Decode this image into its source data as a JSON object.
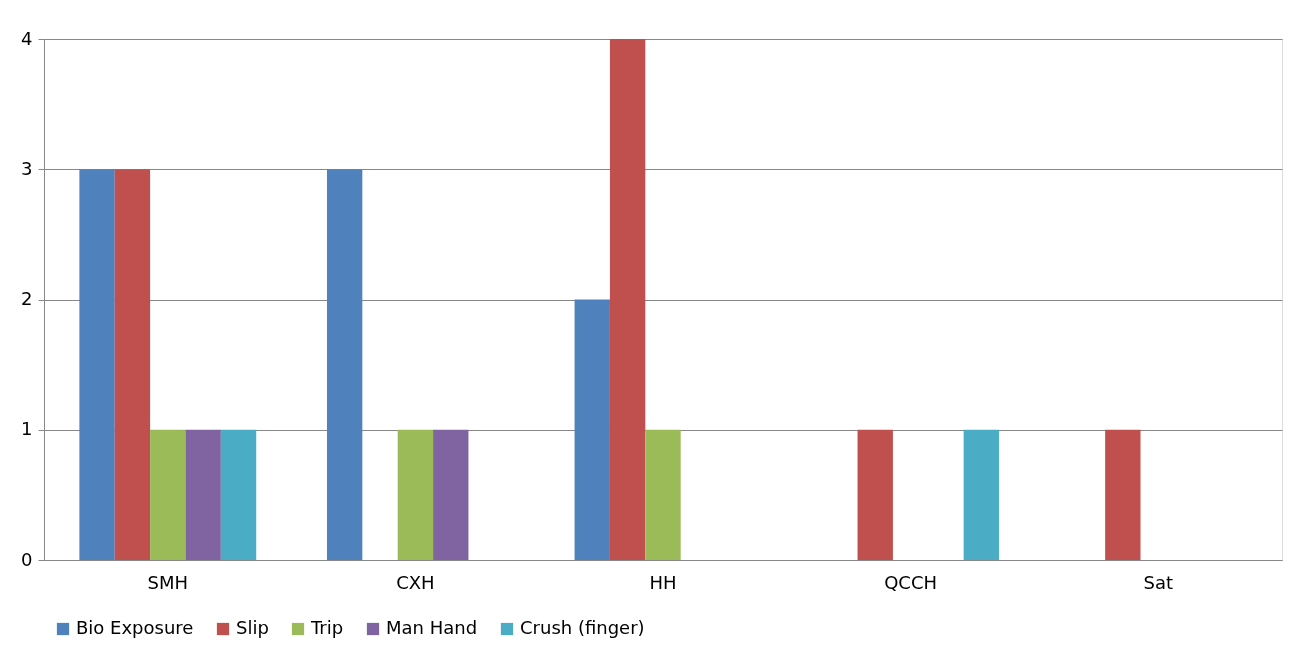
{
  "chart_data": {
    "type": "bar",
    "categories": [
      "SMH",
      "CXH",
      "HH",
      "QCCH",
      "Sat"
    ],
    "series": [
      {
        "name": "Bio Exposure",
        "color": "#4f81bd",
        "values": [
          3,
          3,
          2,
          0,
          0
        ]
      },
      {
        "name": "Slip",
        "color": "#c0504d",
        "values": [
          3,
          0,
          4,
          1,
          1
        ]
      },
      {
        "name": "Trip",
        "color": "#9bbb59",
        "values": [
          1,
          1,
          1,
          0,
          0
        ]
      },
      {
        "name": "Man Hand",
        "color": "#8064a2",
        "values": [
          1,
          1,
          0,
          0,
          0
        ]
      },
      {
        "name": "Crush (finger)",
        "color": "#4bacc6",
        "values": [
          1,
          0,
          0,
          1,
          0
        ]
      }
    ],
    "ylim": [
      0,
      4
    ],
    "yticks": [
      0,
      1,
      2,
      3,
      4
    ],
    "grid": "y",
    "legend": "bottom"
  }
}
